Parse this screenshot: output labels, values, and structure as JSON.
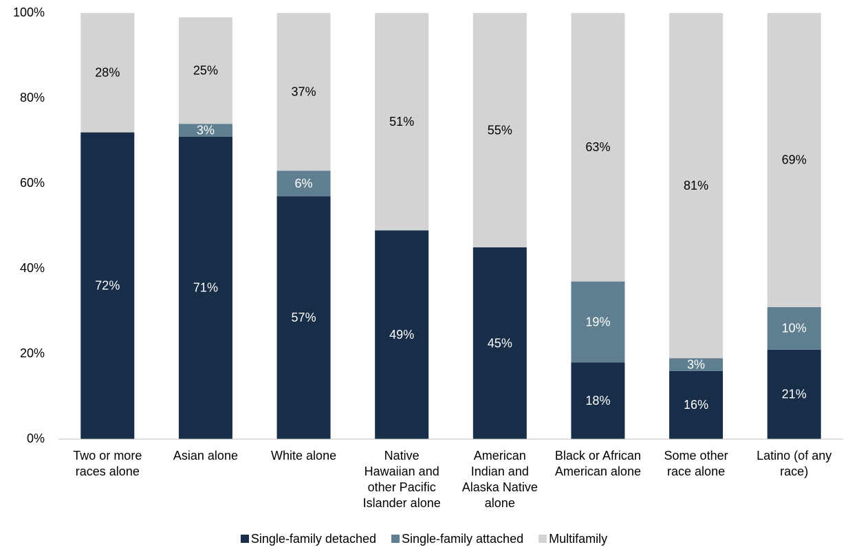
{
  "chart_data": {
    "type": "stacked-bar",
    "categories": [
      "Two or more races alone",
      "Asian alone",
      "White alone",
      "Native Hawaiian and other Pacific Islander alone",
      "American Indian and Alaska Native alone",
      "Black or African American alone",
      "Some other race alone",
      "Latino (of any race)"
    ],
    "series": [
      {
        "name": "Single-family detached",
        "color": "#172d48",
        "label_color": "#ffffff",
        "values": [
          72,
          71,
          57,
          49,
          45,
          18,
          16,
          21
        ],
        "value_labels": [
          "72%",
          "71%",
          "57%",
          "49%",
          "45%",
          "18%",
          "16%",
          "21%"
        ]
      },
      {
        "name": "Single-family attached",
        "color": "#5f7f91",
        "label_color": "#ffffff",
        "values": [
          null,
          3,
          6,
          null,
          null,
          19,
          3,
          10
        ],
        "value_labels": [
          null,
          "3%",
          "6%",
          null,
          null,
          "19%",
          "3%",
          "10%"
        ]
      },
      {
        "name": "Multifamily",
        "color": "#d3d3d3",
        "label_color": "#000000",
        "values": [
          28,
          25,
          37,
          51,
          55,
          63,
          81,
          69
        ],
        "value_labels": [
          "28%",
          "25%",
          "37%",
          "51%",
          "55%",
          "63%",
          "81%",
          "69%"
        ]
      }
    ],
    "ylim": [
      0,
      100
    ],
    "yticks": [
      {
        "value": 0,
        "label": "0%"
      },
      {
        "value": 20,
        "label": "20%"
      },
      {
        "value": 40,
        "label": "40%"
      },
      {
        "value": 60,
        "label": "60%"
      },
      {
        "value": 80,
        "label": "80%"
      },
      {
        "value": 100,
        "label": "100%"
      }
    ],
    "grid": false,
    "legend": "bottom"
  }
}
